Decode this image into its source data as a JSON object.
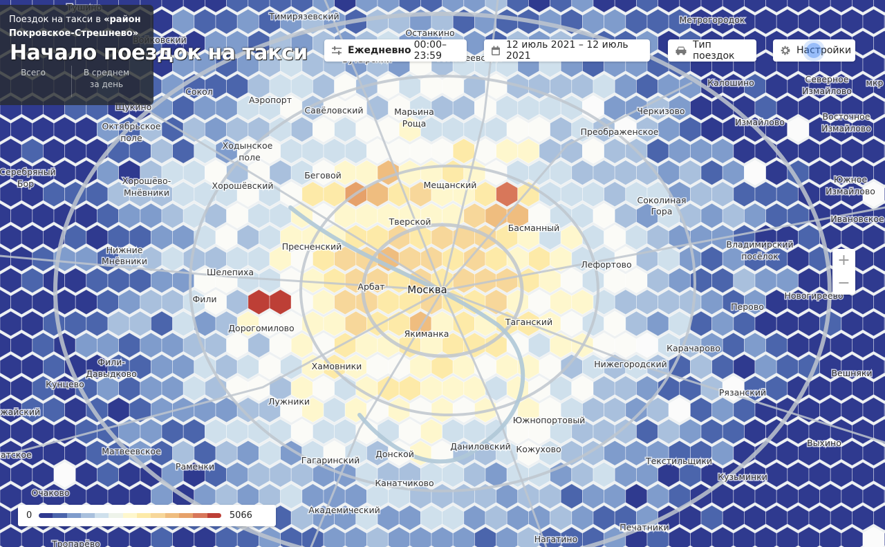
{
  "panel": {
    "subtitle_prefix": "Поездок на такси в",
    "subtitle_district": "«район Покровское-Стрешнево»",
    "title": "Начало поездок на такси",
    "stat_total_label": "Всего",
    "stat_avg_label": "В среднем за день"
  },
  "toolbar": {
    "period_bold": "Ежедневно",
    "period_time": "00:00–23:59",
    "date_range": "12 июль 2021 – 12 июль 2021",
    "trip_type": "Тип поездок",
    "settings": "Настройки"
  },
  "zoom": {
    "in": "+",
    "out": "−"
  },
  "legend": {
    "min": "0",
    "max": "5066",
    "colors": [
      "#2f3a8f",
      "#4b65ac",
      "#7f9ccc",
      "#a9c0dd",
      "#cfe0ec",
      "#eef3ea",
      "#fef7cd",
      "#fdeaa8",
      "#f7d79a",
      "#efbd7f",
      "#e6a16a",
      "#d8775a",
      "#bd3f36"
    ]
  },
  "map_labels": [
    {
      "t": "Тушино"
    },
    {
      "t": "Тимирязевский"
    },
    {
      "t": "Останкино"
    },
    {
      "t": "Метрогородок"
    },
    {
      "t": "Бутырский"
    },
    {
      "t": "Алексеевский"
    },
    {
      "t": "Войковский"
    },
    {
      "t": "Сокол"
    },
    {
      "t": "Аэропорт"
    },
    {
      "t": "Савёловский"
    },
    {
      "t": "Марьина"
    },
    {
      "t": "Роща"
    },
    {
      "t": "Калошино"
    },
    {
      "t": "Северное"
    },
    {
      "t": "Измайлово"
    },
    {
      "t": "мкр"
    },
    {
      "t": "Щукино"
    },
    {
      "t": "Октябрьское"
    },
    {
      "t": "поле"
    },
    {
      "t": "Черкизово"
    },
    {
      "t": "Измайлово"
    },
    {
      "t": "Восточное"
    },
    {
      "t": "Измайлово"
    },
    {
      "t": "Преображенское"
    },
    {
      "t": "Ходынское"
    },
    {
      "t": "поле"
    },
    {
      "t": "Серебряный"
    },
    {
      "t": "Бор"
    },
    {
      "t": "Беговой"
    },
    {
      "t": "Хорошёво-"
    },
    {
      "t": "Мнёвники"
    },
    {
      "t": "Хорошёвский"
    },
    {
      "t": "Мещанский"
    },
    {
      "t": "Южное"
    },
    {
      "t": "Измайлово"
    },
    {
      "t": "Соколиная"
    },
    {
      "t": "Гора"
    },
    {
      "t": "Ивановское"
    },
    {
      "t": "Тверской"
    },
    {
      "t": "Басманный"
    },
    {
      "t": "Пресненский"
    },
    {
      "t": "Владимирский"
    },
    {
      "t": "посёлок"
    },
    {
      "t": "Нижние"
    },
    {
      "t": "Мнёвники"
    },
    {
      "t": "Лефортово"
    },
    {
      "t": "Шелепиха"
    },
    {
      "t": "Арбат"
    },
    {
      "t": "Москва",
      "city": true
    },
    {
      "t": "Новогиреево"
    },
    {
      "t": "Фили"
    },
    {
      "t": "Перово"
    },
    {
      "t": "Таганский"
    },
    {
      "t": "Дорогомилово"
    },
    {
      "t": "Якиманка"
    },
    {
      "t": "Карачарово"
    },
    {
      "t": "Хамовники"
    },
    {
      "t": "Нижегородский"
    },
    {
      "t": "Фили-"
    },
    {
      "t": "Давыдково"
    },
    {
      "t": "Вешняки"
    },
    {
      "t": "Кунцево"
    },
    {
      "t": "Лужники"
    },
    {
      "t": "Рязанский"
    },
    {
      "t": "Можайский"
    },
    {
      "t": "Южнопортовый"
    },
    {
      "t": "Даниловский"
    },
    {
      "t": "Кожухово"
    },
    {
      "t": "Выхино"
    },
    {
      "t": "Матвеевское"
    },
    {
      "t": "Донской"
    },
    {
      "t": "Гагаринский"
    },
    {
      "t": "Текстильщики"
    },
    {
      "t": "Раменки"
    },
    {
      "t": "Крылатское"
    },
    {
      "t": "Кузьминки"
    },
    {
      "t": "Очаково"
    },
    {
      "t": "Канатчиково"
    },
    {
      "t": "Академический"
    },
    {
      "t": "Печатники"
    },
    {
      "t": "Нагатино"
    },
    {
      "t": "Тропарёво"
    }
  ]
}
